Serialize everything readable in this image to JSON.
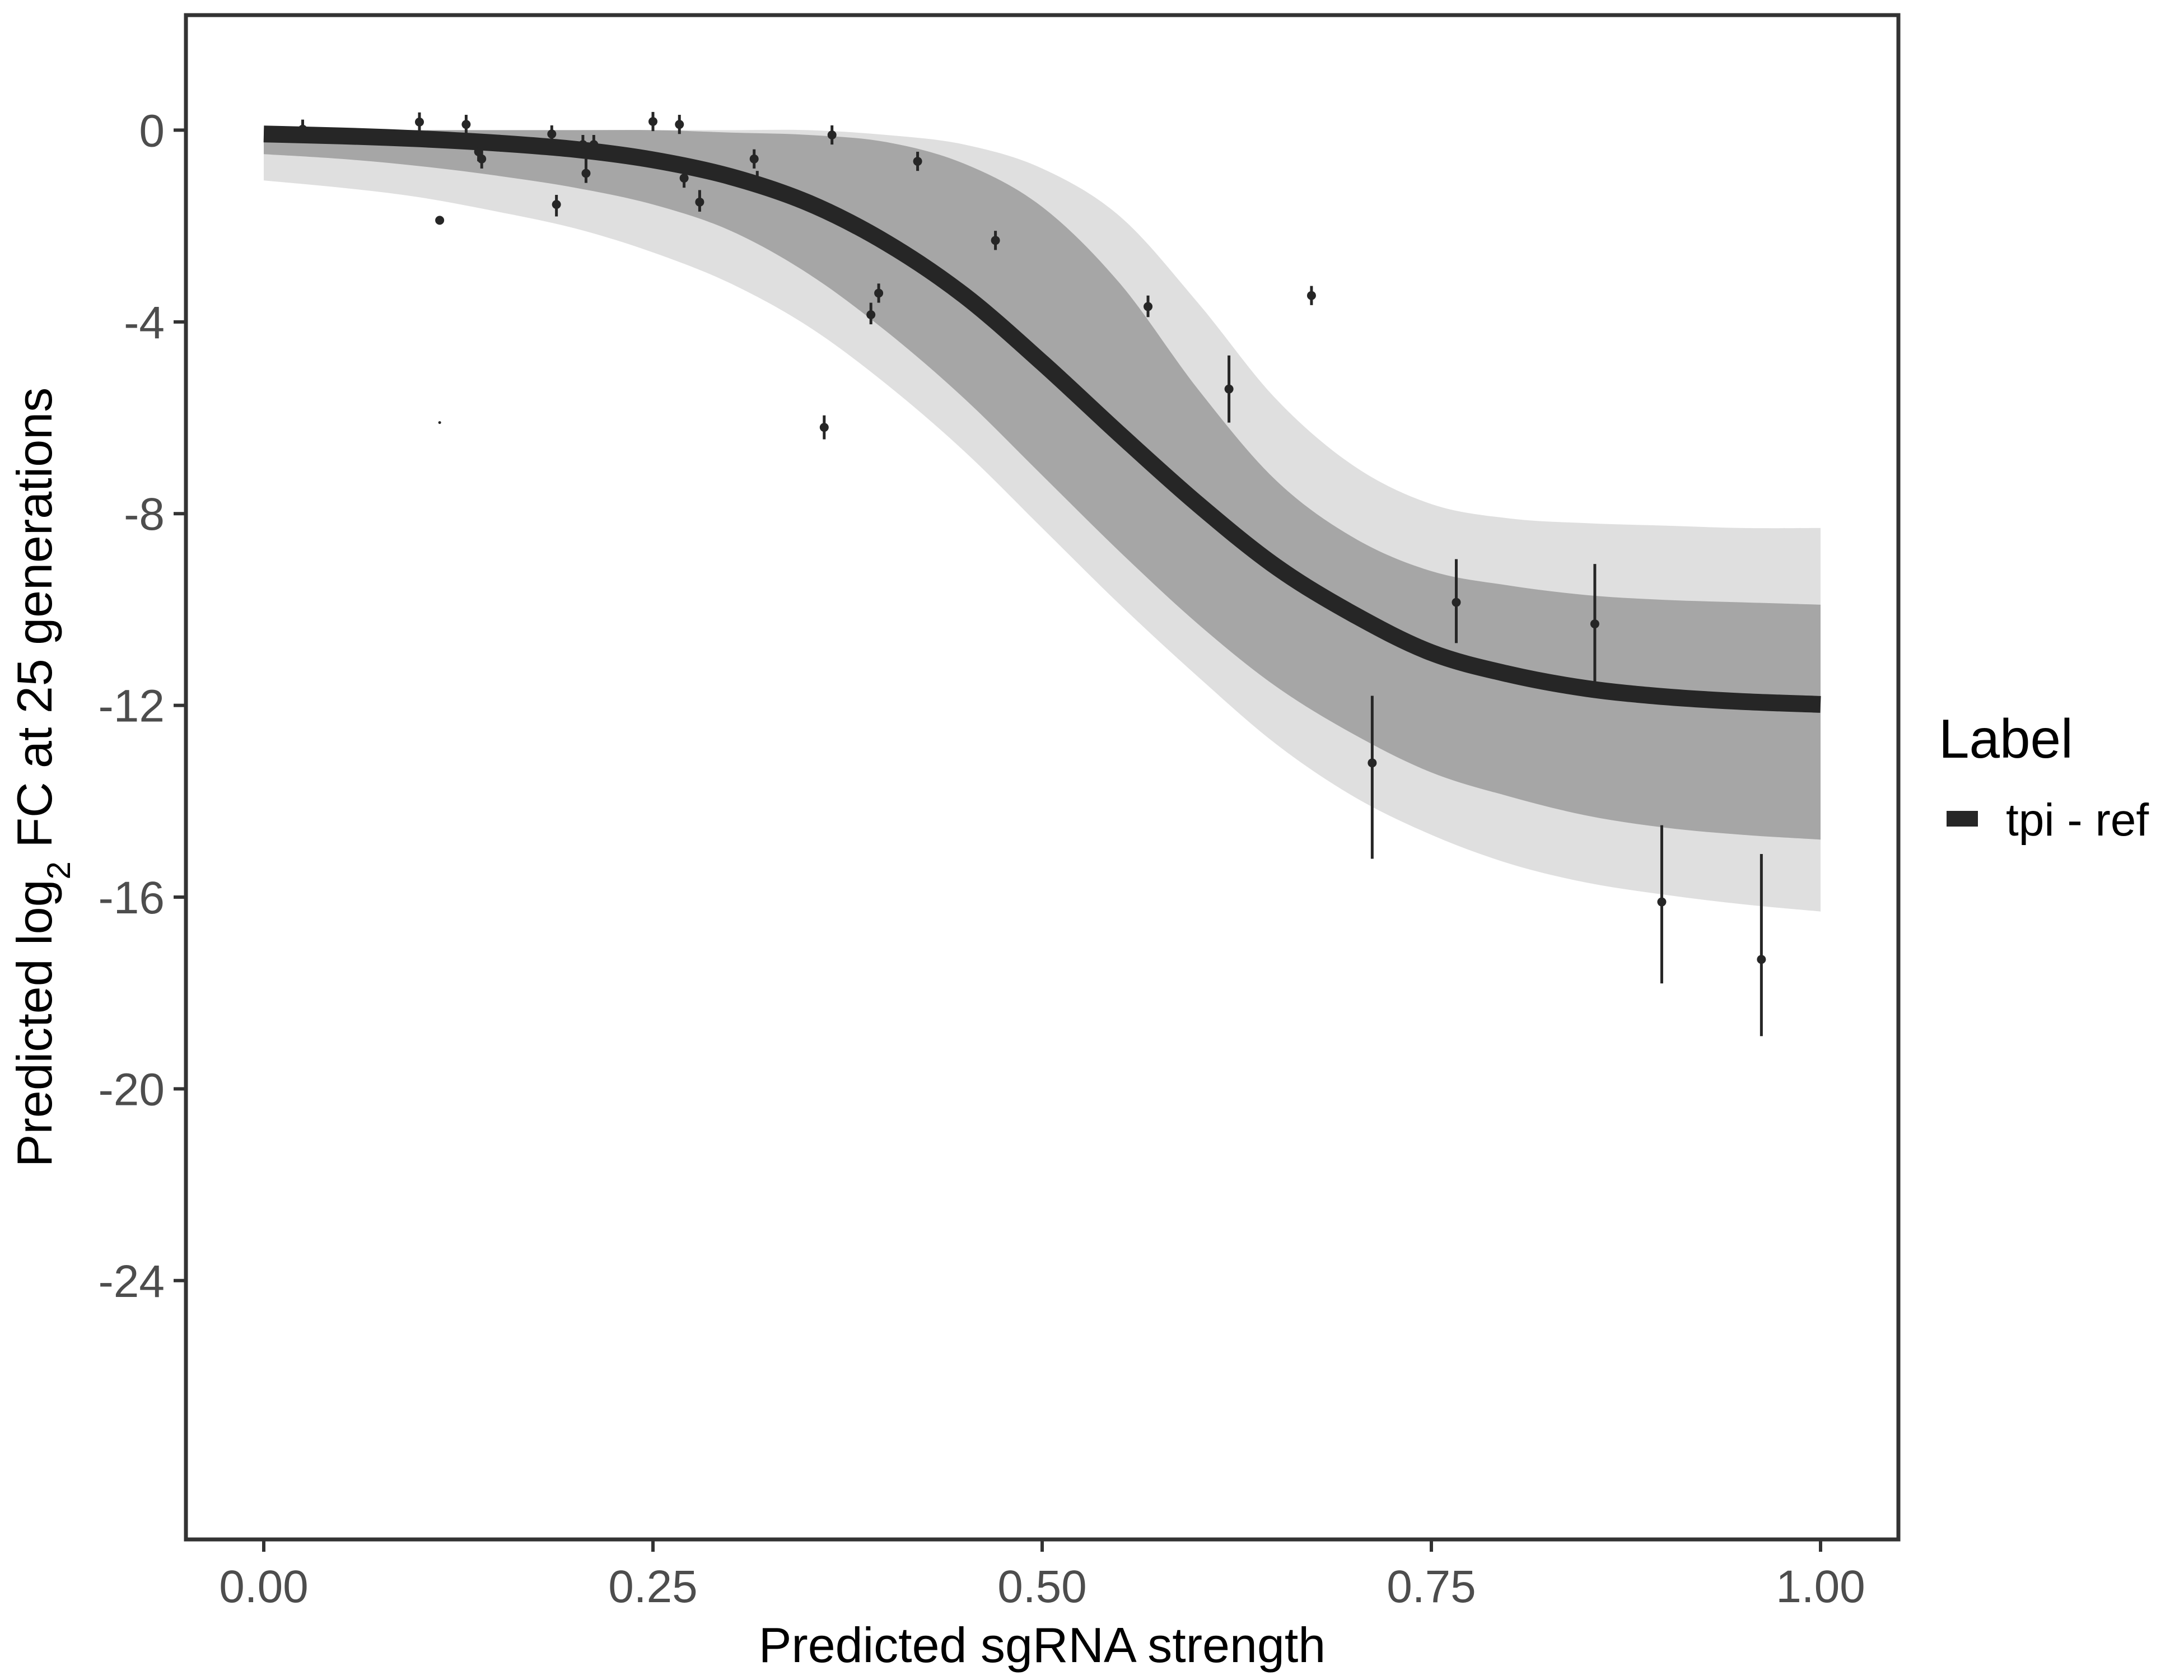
{
  "chart_data": {
    "type": "line",
    "xlabel": "Predicted sgRNA strength",
    "ylabel": {
      "prefix": "Predicted  log",
      "subscript": "2",
      "suffix": " FC at 25 generations"
    },
    "xlim": [
      -0.05,
      1.05
    ],
    "ylim": [
      -29.4,
      2.4
    ],
    "x_ticks": [
      0,
      0.25,
      0.5,
      0.75,
      1
    ],
    "x_tick_labels": [
      "0.00",
      "0.25",
      "0.50",
      "0.75",
      "1.00"
    ],
    "y_ticks": [
      0,
      -4,
      -8,
      -12,
      -16,
      -20,
      -24
    ],
    "y_tick_labels": [
      "0",
      "-4",
      "-8",
      "-12",
      "-16",
      "-20",
      "-24"
    ],
    "grid": false,
    "legend": {
      "title": "Label",
      "position": "right",
      "entries": [
        {
          "label": "tpi - ref",
          "color": "#262626"
        }
      ]
    },
    "fit_curve": {
      "name": "tpi - ref",
      "color": "#262626",
      "x": [
        0,
        0.05,
        0.1,
        0.15,
        0.2,
        0.25,
        0.3,
        0.35,
        0.4,
        0.45,
        0.5,
        0.55,
        0.6,
        0.65,
        0.7,
        0.75,
        0.8,
        0.85,
        0.9,
        0.95,
        1.0
      ],
      "y": [
        -0.08,
        -0.12,
        -0.18,
        -0.27,
        -0.4,
        -0.62,
        -0.97,
        -1.52,
        -2.35,
        -3.45,
        -4.85,
        -6.35,
        -7.8,
        -9.1,
        -10.1,
        -10.9,
        -11.35,
        -11.65,
        -11.82,
        -11.92,
        -11.98
      ]
    },
    "posterior_band": {
      "color": "#a6a6a6",
      "x": [
        0,
        0.05,
        0.1,
        0.15,
        0.2,
        0.25,
        0.3,
        0.35,
        0.4,
        0.45,
        0.5,
        0.55,
        0.6,
        0.65,
        0.7,
        0.75,
        0.8,
        0.85,
        0.9,
        0.95,
        1.0
      ],
      "upper": [
        0,
        0,
        0,
        0,
        0,
        0,
        -0.05,
        -0.1,
        -0.25,
        -0.7,
        -1.6,
        -3.2,
        -5.4,
        -7.3,
        -8.5,
        -9.2,
        -9.5,
        -9.7,
        -9.8,
        -9.85,
        -9.9
      ],
      "lower": [
        -0.5,
        -0.6,
        -0.75,
        -0.95,
        -1.2,
        -1.55,
        -2.1,
        -3.0,
        -4.2,
        -5.6,
        -7.2,
        -8.8,
        -10.3,
        -11.6,
        -12.6,
        -13.4,
        -13.9,
        -14.3,
        -14.55,
        -14.7,
        -14.8
      ]
    },
    "posterior_outer": {
      "color": "#d9d9d9",
      "x": [
        0,
        0.05,
        0.1,
        0.15,
        0.2,
        0.25,
        0.3,
        0.35,
        0.4,
        0.45,
        0.5,
        0.55,
        0.6,
        0.65,
        0.7,
        0.75,
        0.8,
        0.85,
        0.9,
        0.95,
        1.0
      ],
      "upper": [
        0,
        0,
        0,
        0,
        0,
        0,
        0,
        0,
        -0.1,
        -0.3,
        -0.8,
        -1.8,
        -3.6,
        -5.6,
        -7.0,
        -7.8,
        -8.1,
        -8.2,
        -8.25,
        -8.3,
        -8.3
      ],
      "lower": [
        -1.05,
        -1.2,
        -1.4,
        -1.7,
        -2.05,
        -2.55,
        -3.2,
        -4.1,
        -5.3,
        -6.7,
        -8.3,
        -9.9,
        -11.4,
        -12.8,
        -13.9,
        -14.7,
        -15.3,
        -15.7,
        -15.95,
        -16.15,
        -16.3
      ]
    },
    "points": [
      {
        "x": 0.025,
        "y": 0.02,
        "lo": -0.12,
        "hi": 0.22
      },
      {
        "x": 0.1,
        "y": 0.17,
        "lo": -0.08,
        "hi": 0.37
      },
      {
        "x": 0.113,
        "y": -1.88,
        "lo": -1.88,
        "hi": -1.88
      },
      {
        "x": 0.113,
        "y": -6.1,
        "lo": -6.1,
        "hi": -6.1
      },
      {
        "x": 0.13,
        "y": 0.12,
        "lo": -0.12,
        "hi": 0.32
      },
      {
        "x": 0.138,
        "y": -0.45,
        "lo": -0.65,
        "hi": -0.27
      },
      {
        "x": 0.14,
        "y": -0.6,
        "lo": -0.8,
        "hi": -0.4
      },
      {
        "x": 0.185,
        "y": -0.08,
        "lo": -0.3,
        "hi": 0.1
      },
      {
        "x": 0.188,
        "y": -1.55,
        "lo": -1.8,
        "hi": -1.35
      },
      {
        "x": 0.205,
        "y": -0.3,
        "lo": -0.5,
        "hi": -0.1
      },
      {
        "x": 0.207,
        "y": -0.9,
        "lo": -1.1,
        "hi": -0.6
      },
      {
        "x": 0.212,
        "y": -0.3,
        "lo": -0.5,
        "hi": -0.1
      },
      {
        "x": 0.25,
        "y": 0.18,
        "lo": -0.02,
        "hi": 0.38
      },
      {
        "x": 0.267,
        "y": 0.12,
        "lo": -0.08,
        "hi": 0.32
      },
      {
        "x": 0.27,
        "y": -1.0,
        "lo": -1.2,
        "hi": -0.8
      },
      {
        "x": 0.28,
        "y": -1.5,
        "lo": -1.7,
        "hi": -1.25
      },
      {
        "x": 0.315,
        "y": -0.6,
        "lo": -0.8,
        "hi": -0.4
      },
      {
        "x": 0.317,
        "y": -1.05,
        "lo": -1.2,
        "hi": -0.85
      },
      {
        "x": 0.36,
        "y": -6.2,
        "lo": -6.45,
        "hi": -5.95
      },
      {
        "x": 0.365,
        "y": -0.1,
        "lo": -0.3,
        "hi": 0.1
      },
      {
        "x": 0.39,
        "y": -3.85,
        "lo": -4.05,
        "hi": -3.6
      },
      {
        "x": 0.395,
        "y": -3.4,
        "lo": -3.6,
        "hi": -3.2
      },
      {
        "x": 0.42,
        "y": -0.65,
        "lo": -0.85,
        "hi": -0.45
      },
      {
        "x": 0.47,
        "y": -2.3,
        "lo": -2.5,
        "hi": -2.1
      },
      {
        "x": 0.568,
        "y": -3.68,
        "lo": -3.9,
        "hi": -3.45
      },
      {
        "x": 0.62,
        "y": -5.4,
        "lo": -6.1,
        "hi": -4.7
      },
      {
        "x": 0.673,
        "y": -3.45,
        "lo": -3.65,
        "hi": -3.25
      },
      {
        "x": 0.712,
        "y": -13.2,
        "lo": -15.2,
        "hi": -11.8
      },
      {
        "x": 0.766,
        "y": -9.85,
        "lo": -10.7,
        "hi": -8.95
      },
      {
        "x": 0.855,
        "y": -10.3,
        "lo": -11.5,
        "hi": -9.05
      },
      {
        "x": 0.898,
        "y": -16.1,
        "lo": -17.8,
        "hi": -14.5
      },
      {
        "x": 0.962,
        "y": -17.3,
        "lo": -18.9,
        "hi": -15.1
      }
    ]
  }
}
